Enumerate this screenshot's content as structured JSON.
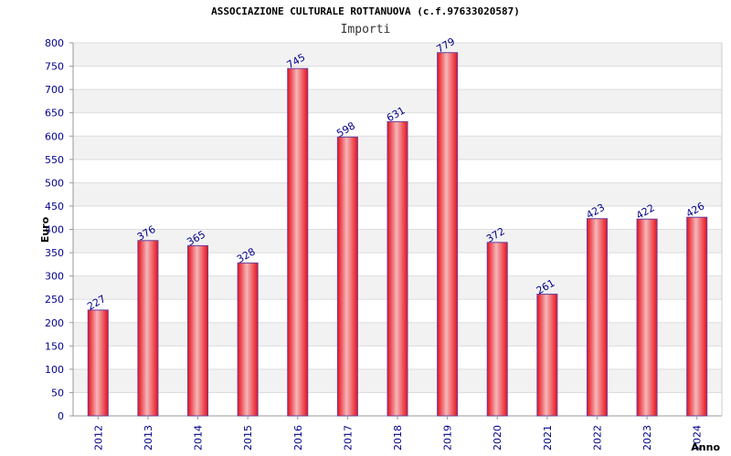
{
  "chart_data": {
    "type": "bar",
    "title": "ASSOCIAZIONE CULTURALE ROTTANUOVA (c.f.97633020587)",
    "subtitle": "Importi",
    "xlabel": "Anno",
    "ylabel": "Euro",
    "categories": [
      "2012",
      "2013",
      "2014",
      "2015",
      "2016",
      "2017",
      "2018",
      "2019",
      "2020",
      "2021",
      "2022",
      "2023",
      "2024"
    ],
    "values": [
      227,
      376,
      365,
      328,
      745,
      598,
      631,
      779,
      372,
      261,
      423,
      422,
      426
    ],
    "ylim": [
      0,
      800
    ],
    "yticks": [
      0,
      50,
      100,
      150,
      200,
      250,
      300,
      350,
      400,
      450,
      500,
      550,
      600,
      650,
      700,
      750,
      800
    ],
    "grid": true,
    "bar_color": "#e8101a",
    "bar_highlight": "#f5b7b9",
    "bar_outline": "#6a3d9a",
    "band_color": "#f2f2f2",
    "tick_color": "#00008b"
  }
}
